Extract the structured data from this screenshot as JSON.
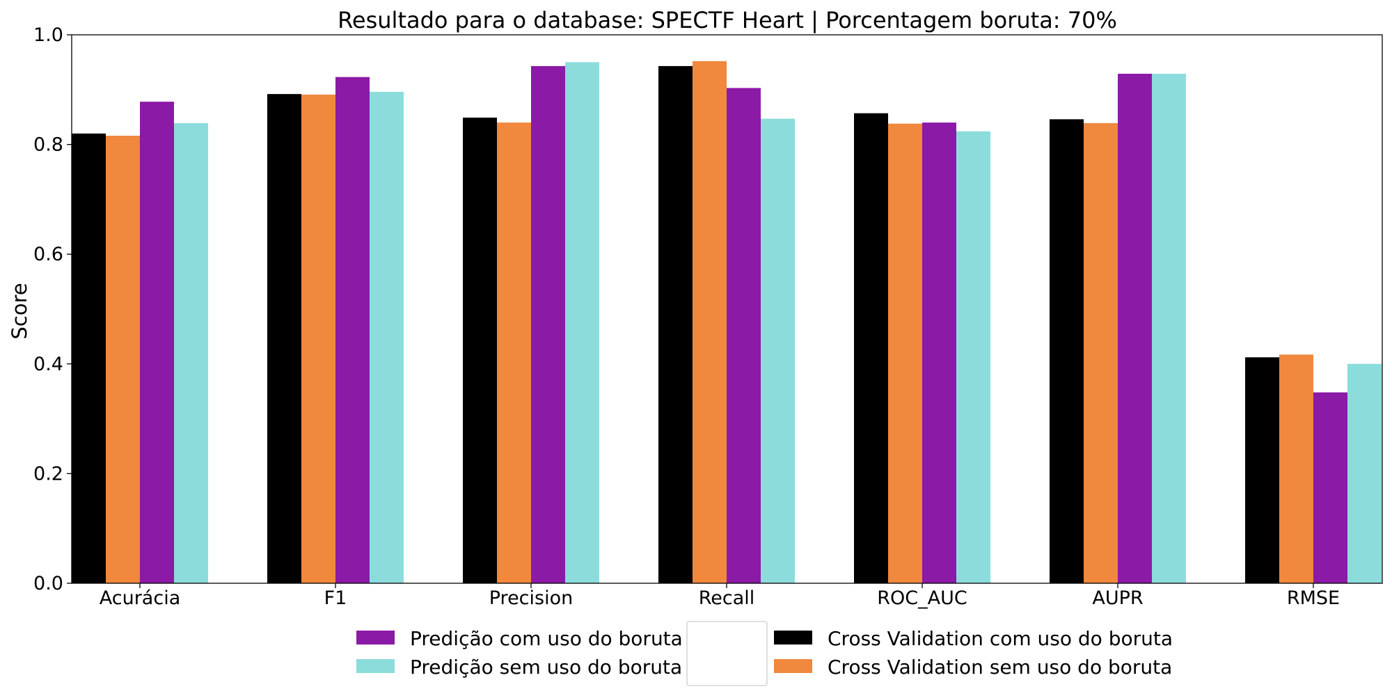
{
  "chart_data": {
    "type": "bar",
    "title": "Resultado para o database: SPECTF Heart | Porcentagem boruta: 70%",
    "xlabel": "",
    "ylabel": "Score",
    "ylim": [
      0,
      1
    ],
    "yticks": [
      "0.0",
      "0.2",
      "0.4",
      "0.6",
      "0.8",
      "1.0"
    ],
    "categories": [
      "Acurácia",
      "F1",
      "Precision",
      "Recall",
      "ROC_AUC",
      "AUPR",
      "RMSE"
    ],
    "series": [
      {
        "name": "Cross Validation com uso do boruta",
        "color": "#000000",
        "values": [
          0.82,
          0.892,
          0.849,
          0.943,
          0.857,
          0.846,
          0.412
        ]
      },
      {
        "name": "Cross Validation sem uso do boruta",
        "color": "#f0883e",
        "values": [
          0.816,
          0.891,
          0.84,
          0.952,
          0.838,
          0.839,
          0.417
        ]
      },
      {
        "name": "Predição com uso do boruta",
        "color": "#8b1aa6",
        "values": [
          0.878,
          0.923,
          0.943,
          0.903,
          0.84,
          0.929,
          0.348
        ]
      },
      {
        "name": "Predição sem uso do boruta",
        "color": "#8cdcdc",
        "values": [
          0.839,
          0.896,
          0.95,
          0.847,
          0.824,
          0.929,
          0.4
        ]
      }
    ],
    "legend_placement": "bottom-center",
    "legend_order": [
      2,
      3,
      0,
      1
    ],
    "grid": false
  }
}
